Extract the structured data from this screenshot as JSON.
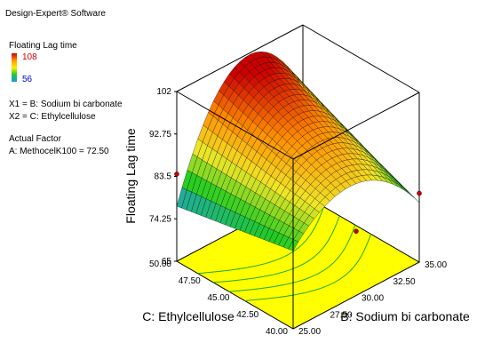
{
  "software": "Design-Expert® Software",
  "response": {
    "name": "Floating Lag time",
    "high": "108",
    "low": "56",
    "high_color": "#cc0000",
    "low_color": "#0000cc"
  },
  "factors": {
    "x1": "X1 = B: Sodium bi carbonate",
    "x2": "X2 = C: Ethylcellulose"
  },
  "actual_factor": {
    "heading": "Actual Factor",
    "value": "A: MethocelK100 = 72.50"
  },
  "chart_data": {
    "type": "surface",
    "zlabel": "Floating Lag time",
    "xlabel": "B: Sodium bi carbonate",
    "ylabel": "C: Ethylcellulose",
    "z_ticks": [
      "65",
      "74.25",
      "83.5",
      "92.75",
      "102"
    ],
    "x_ticks": [
      "25.00",
      "27.50",
      "30.00",
      "32.50",
      "35.00"
    ],
    "y_ticks": [
      "40.00",
      "42.50",
      "45.00",
      "47.50",
      "50.00"
    ],
    "xlim": [
      25,
      35
    ],
    "ylim": [
      40,
      50
    ],
    "zlim": [
      65,
      102
    ],
    "surface_corners": {
      "b25_c40": 82,
      "b35_c40": 78,
      "b35_c50": 88,
      "b25_c50": 77
    },
    "surface_peak": 100,
    "design_points": [
      {
        "b": 25,
        "c": 50,
        "z": 84
      },
      {
        "b": 30,
        "c": 40,
        "z": 79
      },
      {
        "b": 35,
        "c": 40,
        "z": 80
      }
    ],
    "colors": {
      "surface_low": "#1e90ff",
      "surface_mid": "#22cc22",
      "surface_high": "#cc0000",
      "floor": "#ffff00",
      "contour": "#22aa22"
    }
  }
}
